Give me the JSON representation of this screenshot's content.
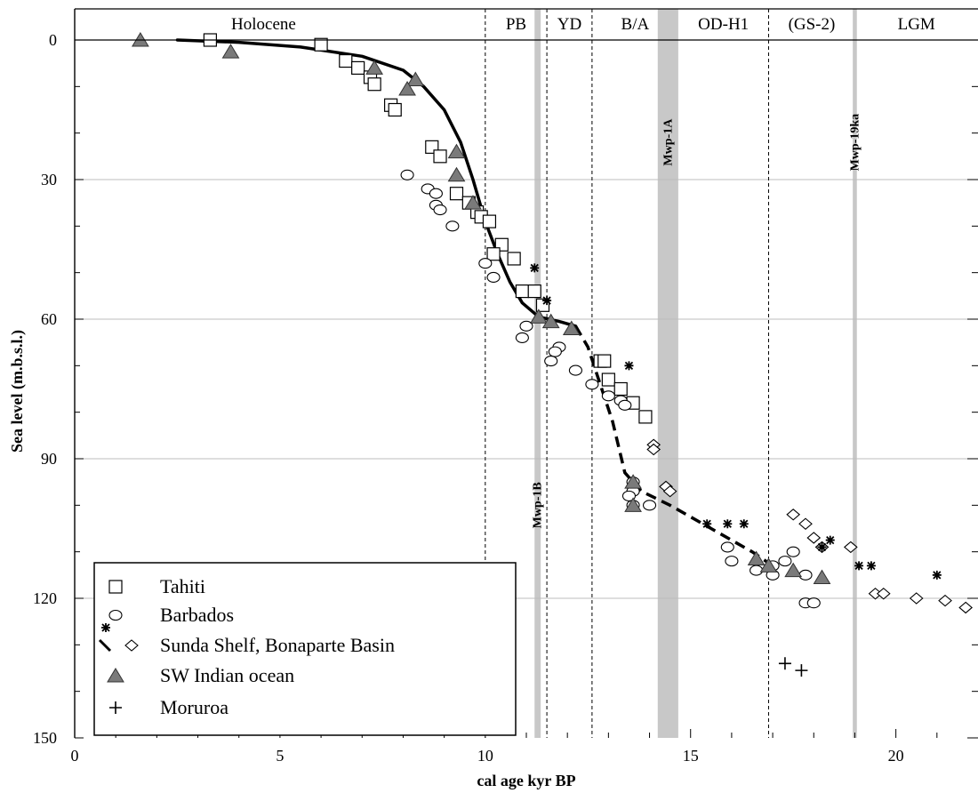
{
  "chart_data": {
    "type": "scatter",
    "xlabel": "cal age kyr BP",
    "ylabel": "Sea level (m.b.s.l.)",
    "xlim": [
      0,
      22
    ],
    "ylim": [
      0,
      150
    ],
    "y_inverted": true,
    "x_ticks": [
      0,
      5,
      10,
      15,
      20
    ],
    "y_ticks": [
      0,
      30,
      60,
      90,
      120,
      150
    ],
    "gridlines_y": [
      30,
      60,
      90,
      120
    ],
    "periods": [
      {
        "label": "Holocene",
        "start": 0,
        "end": 10
      },
      {
        "label": "PB",
        "start": 10,
        "end": 11.5
      },
      {
        "label": "YD",
        "start": 11.5,
        "end": 12.6
      },
      {
        "label": "B/A",
        "start": 12.6,
        "end": 14.7
      },
      {
        "label": "OD-H1",
        "start": 14.7,
        "end": 16.9
      },
      {
        "label": "(GS-2)",
        "start": 16.9,
        "end": 19
      },
      {
        "label": "LGM",
        "start": 19,
        "end": 22
      }
    ],
    "period_boundaries_dashed": [
      10,
      11.5,
      12.6,
      16.9
    ],
    "meltwater_pulses": [
      {
        "label": "Mwp-1B",
        "start": 11.2,
        "end": 11.35,
        "label_depth": 100
      },
      {
        "label": "Mwp-1A",
        "start": 14.2,
        "end": 14.7,
        "label_depth": 22
      },
      {
        "label": "Mwp-19ka",
        "start": 18.95,
        "end": 19.05,
        "label_depth": 22
      }
    ],
    "series": [
      {
        "name": "Tahiti",
        "marker": "square",
        "points": [
          [
            3.3,
            0
          ],
          [
            6,
            1
          ],
          [
            6.6,
            4.5
          ],
          [
            6.9,
            6
          ],
          [
            7.2,
            8
          ],
          [
            7.3,
            9.5
          ],
          [
            7.7,
            14
          ],
          [
            7.8,
            15
          ],
          [
            8.7,
            23
          ],
          [
            8.9,
            25
          ],
          [
            9.3,
            33
          ],
          [
            9.6,
            35
          ],
          [
            9.8,
            37
          ],
          [
            9.9,
            38
          ],
          [
            10.1,
            39
          ],
          [
            10.4,
            44
          ],
          [
            10.2,
            46
          ],
          [
            10.7,
            47
          ],
          [
            10.9,
            54
          ],
          [
            11.2,
            54
          ],
          [
            11.4,
            57
          ],
          [
            12.8,
            69
          ],
          [
            12.9,
            69
          ],
          [
            13.0,
            73
          ],
          [
            13.3,
            75
          ],
          [
            13.6,
            78
          ],
          [
            13.9,
            81
          ]
        ]
      },
      {
        "name": "Barbados",
        "marker": "circle",
        "points": [
          [
            8.1,
            29
          ],
          [
            8.6,
            32
          ],
          [
            8.8,
            33
          ],
          [
            8.8,
            35.5
          ],
          [
            8.9,
            36.5
          ],
          [
            9.2,
            40
          ],
          [
            10.0,
            48
          ],
          [
            10.2,
            51
          ],
          [
            11.0,
            61.5
          ],
          [
            10.9,
            64
          ],
          [
            11.8,
            66
          ],
          [
            11.7,
            67
          ],
          [
            11.6,
            69
          ],
          [
            12.2,
            71
          ],
          [
            12.6,
            74
          ],
          [
            13.0,
            76.5
          ],
          [
            13.3,
            77.5
          ],
          [
            13.4,
            78.5
          ],
          [
            13.6,
            95
          ],
          [
            13.6,
            97
          ],
          [
            13.5,
            98
          ],
          [
            13.6,
            100
          ],
          [
            14.0,
            100
          ],
          [
            15.9,
            109
          ],
          [
            16.0,
            112
          ],
          [
            17.0,
            113
          ],
          [
            16.6,
            114
          ],
          [
            17.3,
            112
          ],
          [
            17.0,
            115
          ],
          [
            17.5,
            110
          ],
          [
            17.8,
            115
          ],
          [
            17.8,
            121
          ],
          [
            18.0,
            121
          ]
        ]
      },
      {
        "name": "Sunda Shelf, Bonaparte Basin",
        "marker": "diamond",
        "points": [
          [
            14.1,
            87
          ],
          [
            14.1,
            88
          ],
          [
            14.4,
            96
          ],
          [
            14.5,
            97
          ],
          [
            17.5,
            102
          ],
          [
            17.8,
            104
          ],
          [
            18.0,
            107
          ],
          [
            18.2,
            109
          ],
          [
            18.9,
            109
          ],
          [
            19.5,
            119
          ],
          [
            19.7,
            119
          ],
          [
            20.5,
            120
          ],
          [
            21.2,
            120.5
          ],
          [
            21.7,
            122
          ]
        ]
      },
      {
        "name": "SW Indian ocean",
        "marker": "triangle",
        "points": [
          [
            1.6,
            0
          ],
          [
            3.8,
            2.5
          ],
          [
            7.3,
            6
          ],
          [
            8.3,
            8.5
          ],
          [
            8.1,
            10.5
          ],
          [
            9.3,
            24
          ],
          [
            9.3,
            29
          ],
          [
            9.7,
            35
          ],
          [
            11.3,
            59.5
          ],
          [
            11.6,
            60.5
          ],
          [
            12.1,
            62
          ],
          [
            13.6,
            95
          ],
          [
            13.6,
            100
          ],
          [
            16.6,
            111.5
          ],
          [
            16.9,
            113
          ],
          [
            17.5,
            114
          ],
          [
            18.2,
            115.5
          ]
        ]
      },
      {
        "name": "Moruroa",
        "marker": "plus",
        "points": [
          [
            17.3,
            134
          ],
          [
            17.7,
            135.5
          ]
        ]
      },
      {
        "name": "",
        "marker": "asterisk",
        "points": [
          [
            11.2,
            49
          ],
          [
            11.5,
            56
          ],
          [
            13.5,
            70
          ],
          [
            15.4,
            104
          ],
          [
            15.9,
            104
          ],
          [
            16.3,
            104
          ],
          [
            18.2,
            109
          ],
          [
            18.4,
            107.5
          ],
          [
            19.1,
            113
          ],
          [
            19.4,
            113
          ],
          [
            21.0,
            115
          ]
        ]
      }
    ],
    "curves": [
      {
        "style": "solid",
        "points": [
          [
            2.5,
            0
          ],
          [
            4,
            0.5
          ],
          [
            5.5,
            1.5
          ],
          [
            7,
            3.5
          ],
          [
            8,
            6.5
          ],
          [
            8.5,
            10
          ],
          [
            9,
            15
          ],
          [
            9.4,
            22
          ],
          [
            9.7,
            30
          ],
          [
            10.0,
            39
          ],
          [
            10.3,
            46
          ],
          [
            10.6,
            52
          ],
          [
            10.9,
            56.5
          ],
          [
            11.3,
            59.5
          ],
          [
            11.8,
            60.5
          ],
          [
            12.2,
            61.5
          ]
        ]
      },
      {
        "style": "dashed",
        "points": [
          [
            12.2,
            61.5
          ],
          [
            12.5,
            66
          ],
          [
            12.8,
            74
          ],
          [
            13.1,
            82
          ],
          [
            13.4,
            93
          ],
          [
            13.8,
            97
          ],
          [
            14.5,
            100
          ],
          [
            15.5,
            105
          ],
          [
            16.5,
            110
          ],
          [
            17.0,
            113
          ]
        ]
      }
    ],
    "legend": {
      "position": "bottom-left",
      "entries": [
        {
          "label": "Tahiti",
          "marker": "square"
        },
        {
          "label": "Barbados",
          "marker": "circle"
        },
        {
          "label": "Sunda Shelf, Bonaparte Basin",
          "marker": "dash-diamond"
        },
        {
          "label": "SW Indian ocean",
          "marker": "triangle"
        },
        {
          "label": "Moruroa",
          "marker": "plus"
        }
      ],
      "extra_marker": "asterisk"
    },
    "colors": {
      "triangle_fill": "#7a7a7a",
      "pulse_band": "#c8c8c8",
      "grid": "#bdbdbd"
    }
  }
}
